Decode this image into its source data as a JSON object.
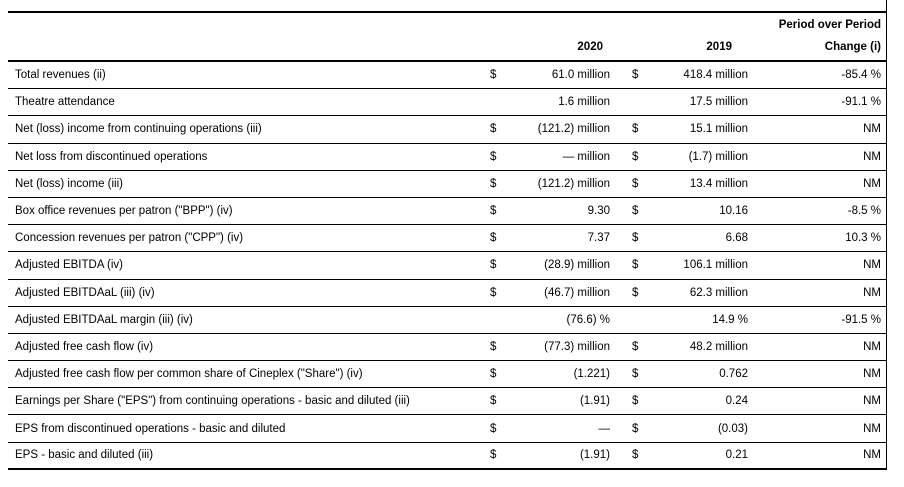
{
  "header": {
    "period_over_period": "Period over Period",
    "col_2020": "2020",
    "col_2019": "2019",
    "col_change": "Change (i)"
  },
  "table": {
    "rows": [
      {
        "label": "Total revenues (ii)",
        "cur2020": "$",
        "val2020": "61.0 million",
        "cur2019": "$",
        "val2019": "418.4 million",
        "change": "-85.4 %"
      },
      {
        "label": "Theatre attendance",
        "cur2020": "",
        "val2020": "1.6 million",
        "cur2019": "",
        "val2019": "17.5 million",
        "change": "-91.1 %"
      },
      {
        "label": "Net (loss) income from continuing operations (iii)",
        "cur2020": "$",
        "val2020": "(121.2) million",
        "cur2019": "$",
        "val2019": "15.1 million",
        "change": "NM"
      },
      {
        "label": "Net loss from discontinued operations",
        "cur2020": "$",
        "val2020": "— million",
        "cur2019": "$",
        "val2019": "(1.7) million",
        "change": "NM"
      },
      {
        "label": "Net (loss) income (iii)",
        "cur2020": "$",
        "val2020": "(121.2) million",
        "cur2019": "$",
        "val2019": "13.4 million",
        "change": "NM"
      },
      {
        "label": "Box office revenues per patron (\"BPP\") (iv)",
        "cur2020": "$",
        "val2020": "9.30",
        "cur2019": "$",
        "val2019": "10.16",
        "change": "-8.5 %"
      },
      {
        "label": "Concession revenues per patron (\"CPP\") (iv)",
        "cur2020": "$",
        "val2020": "7.37",
        "cur2019": "$",
        "val2019": "6.68",
        "change": "10.3 %"
      },
      {
        "label": "Adjusted EBITDA (iv)",
        "cur2020": "$",
        "val2020": "(28.9) million",
        "cur2019": "$",
        "val2019": "106.1 million",
        "change": "NM"
      },
      {
        "label": "Adjusted EBITDAaL (iii) (iv)",
        "cur2020": "$",
        "val2020": "(46.7) million",
        "cur2019": "$",
        "val2019": "62.3 million",
        "change": "NM"
      },
      {
        "label": "Adjusted EBITDAaL margin (iii) (iv)",
        "cur2020": "",
        "val2020": "(76.6) %",
        "cur2019": "",
        "val2019": "14.9 %",
        "change": "-91.5 %"
      },
      {
        "label": "Adjusted free cash flow (iv)",
        "cur2020": "$",
        "val2020": "(77.3) million",
        "cur2019": "$",
        "val2019": "48.2 million",
        "change": "NM"
      },
      {
        "label": "Adjusted free cash flow per common share of Cineplex (\"Share\") (iv)",
        "cur2020": "$",
        "val2020": "(1.221)",
        "cur2019": "$",
        "val2019": "0.762",
        "change": "NM"
      },
      {
        "label": "Earnings per Share (\"EPS\") from continuing operations - basic and diluted (iii)",
        "cur2020": "$",
        "val2020": "(1.91)",
        "cur2019": "$",
        "val2019": "0.24",
        "change": "NM"
      },
      {
        "label": "EPS from discontinued operations - basic and diluted",
        "cur2020": "$",
        "val2020": "—",
        "cur2019": "$",
        "val2019": "(0.03)",
        "change": "NM"
      },
      {
        "label": "EPS - basic and diluted (iii)",
        "cur2020": "$",
        "val2020": "(1.91)",
        "cur2019": "$",
        "val2019": "0.21",
        "change": "NM"
      }
    ]
  },
  "colors": {
    "text": "#000000",
    "rule": "#000000",
    "background": "#ffffff"
  }
}
